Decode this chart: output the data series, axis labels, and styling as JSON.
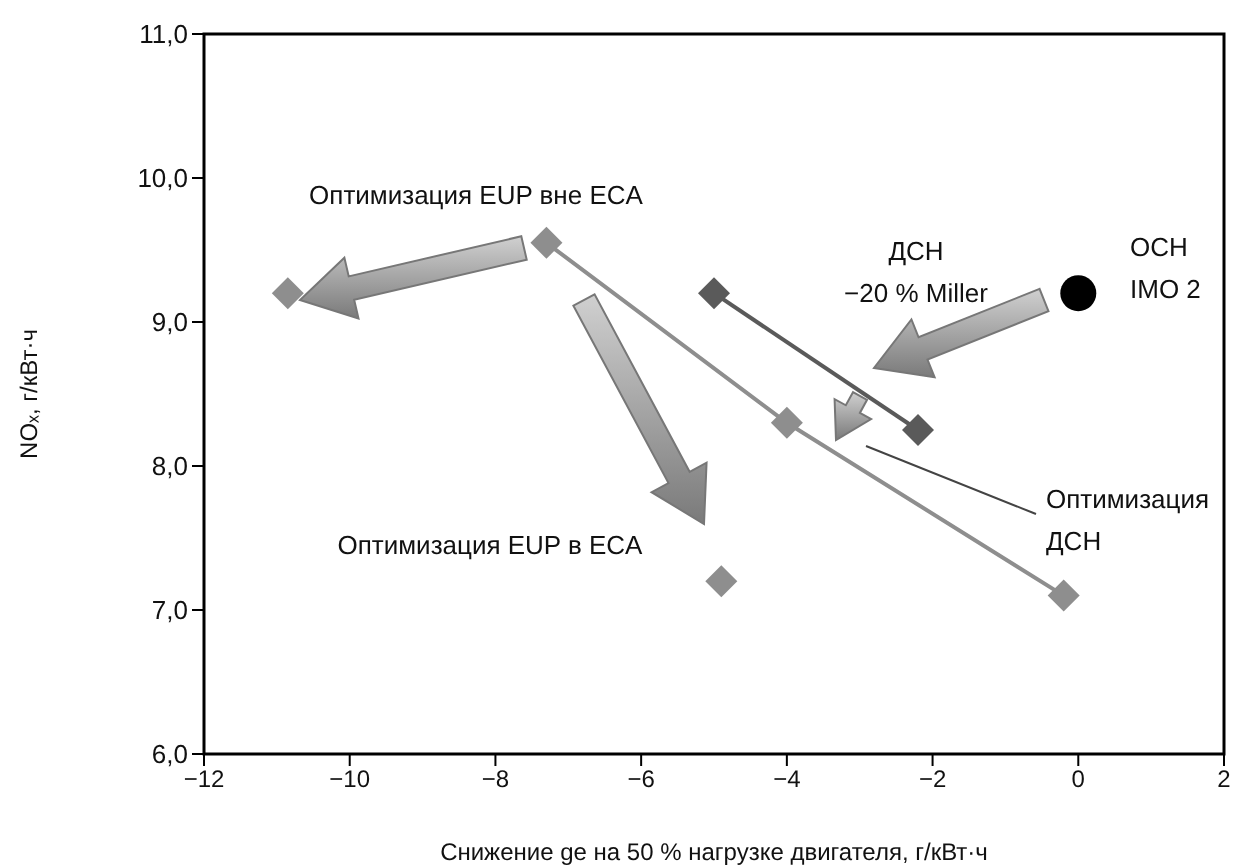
{
  "chart_data": {
    "type": "scatter",
    "xlabel": "Снижение ge на 50 % нагрузке двигателя, г/кВт·ч",
    "ylabel": "NOₓ, г/кВт·ч",
    "xlim": [
      -12,
      2
    ],
    "xticks": [
      {
        "value": -12,
        "label": "−12"
      },
      {
        "value": -10,
        "label": "−10"
      },
      {
        "value": -8,
        "label": "−8"
      },
      {
        "value": -6,
        "label": "−6"
      },
      {
        "value": -4,
        "label": "−4"
      },
      {
        "value": -2,
        "label": "−2"
      },
      0,
      2
    ],
    "ylim": [
      6,
      11
    ],
    "yticks": [
      {
        "value": 6,
        "label": "6,0"
      },
      {
        "value": 7,
        "label": "7,0"
      },
      {
        "value": 8,
        "label": "8,0"
      },
      {
        "value": 9,
        "label": "9,0"
      },
      {
        "value": 10,
        "label": "10,0"
      },
      {
        "value": 11,
        "label": "11,0"
      }
    ],
    "series": [
      {
        "type": "line",
        "marker": "diamond",
        "line_style": "solid",
        "color": "#8e8e8e",
        "x": [
          -7.3,
          -4.0,
          -0.2
        ],
        "values": [
          9.55,
          8.3,
          7.1
        ]
      },
      {
        "type": "line",
        "marker": "diamond",
        "line_style": "solid",
        "color": "#5a5a5a",
        "x": [
          -5.0,
          -2.2
        ],
        "values": [
          9.2,
          8.25
        ]
      },
      {
        "marker": "diamond",
        "color": "#8e8e8e",
        "x": [
          -10.85,
          -4.9
        ],
        "values": [
          9.2,
          7.2
        ]
      },
      {
        "marker": "circle",
        "color": "#000000",
        "x": [
          0
        ],
        "values": [
          9.2
        ]
      }
    ],
    "annotations": [
      "Оптимизация EUP вне ECA",
      "Оптимизация EUP в ECA",
      "ДСН\n−20 % Miller",
      "ОСН\nIMO 2",
      "Оптимизация\nДСН"
    ]
  }
}
